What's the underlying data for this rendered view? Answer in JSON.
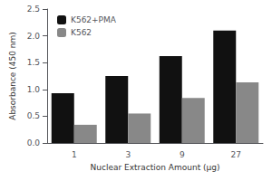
{
  "chart_data": {
    "type": "bar",
    "categories": [
      "1",
      "3",
      "9",
      "27"
    ],
    "series": [
      {
        "name": "K562+PMA",
        "color": "#111111",
        "values": [
          0.93,
          1.25,
          1.62,
          2.1
        ]
      },
      {
        "name": "K562",
        "color": "#888888",
        "values": [
          0.34,
          0.55,
          0.84,
          1.13
        ]
      }
    ],
    "xlabel": "Nuclear Extraction Amount (µg)",
    "ylabel": "Absorbance (450 nm)",
    "ylim": [
      0,
      2.5
    ],
    "yticks": [
      {
        "value": 0,
        "label": "0.0"
      },
      0.5,
      {
        "value": 1,
        "label": "1.0"
      },
      1.5,
      {
        "value": 2,
        "label": "2.0"
      },
      2.5
    ],
    "grid": false,
    "legend": "upper left"
  }
}
